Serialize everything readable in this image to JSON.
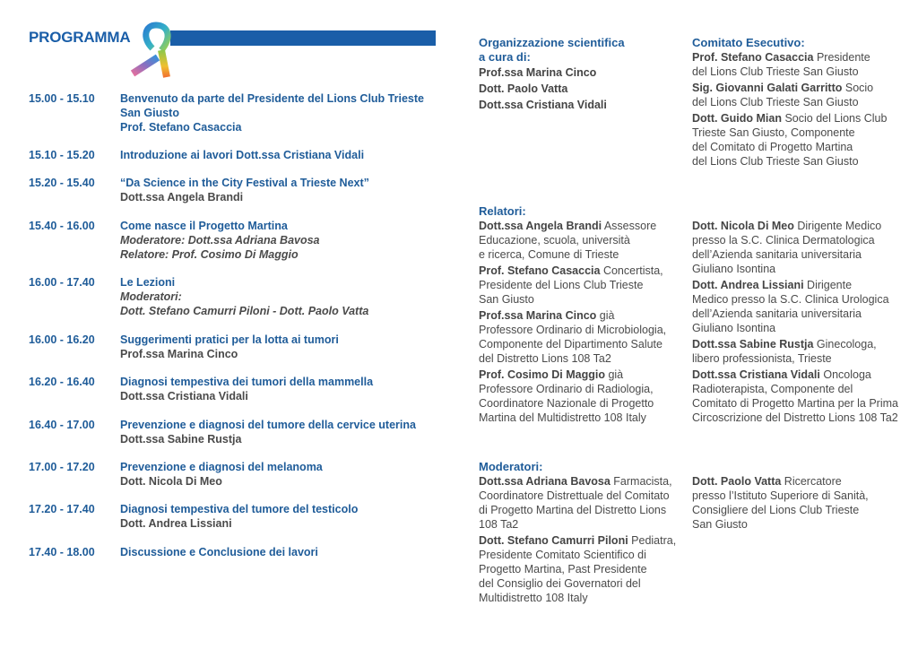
{
  "program": {
    "title": "PROGRAMMA",
    "items": [
      {
        "time": "15.00 - 15.10",
        "lines": [
          {
            "t": "Benvenuto da parte del Presidente del Lions Club Trieste",
            "s": "title"
          },
          {
            "t": "San Giusto",
            "s": "title"
          },
          {
            "t": "Prof. Stefano Casaccia",
            "s": "title"
          }
        ]
      },
      {
        "time": "15.10 - 15.20",
        "lines": [
          {
            "t": "Introduzione ai lavori Dott.ssa Cristiana Vidali",
            "s": "title"
          }
        ]
      },
      {
        "time": "15.20 - 15.40",
        "lines": [
          {
            "t": "“Da Science in the City Festival a Trieste Next”",
            "s": "title"
          },
          {
            "t": "Dott.ssa Angela Brandi",
            "s": "name"
          }
        ]
      },
      {
        "time": "15.40 - 16.00",
        "lines": [
          {
            "t": "Come nasce il Progetto Martina",
            "s": "title"
          },
          {
            "t": "Moderatore: Dott.ssa Adriana Bavosa",
            "s": "ital"
          },
          {
            "t": "Relatore: Prof. Cosimo Di Maggio",
            "s": "ital"
          }
        ]
      },
      {
        "time": "16.00 - 17.40",
        "lines": [
          {
            "t": "Le Lezioni",
            "s": "title"
          },
          {
            "t": "Moderatori:",
            "s": "ital"
          },
          {
            "t": "Dott. Stefano Camurri Piloni -  Dott. Paolo Vatta",
            "s": "ital"
          }
        ]
      },
      {
        "time": "16.00 - 16.20",
        "lines": [
          {
            "t": "Suggerimenti pratici per la lotta ai tumori",
            "s": "title"
          },
          {
            "t": "Prof.ssa Marina Cinco",
            "s": "name"
          }
        ]
      },
      {
        "time": "16.20 - 16.40",
        "lines": [
          {
            "t": "Diagnosi tempestiva dei tumori della mammella",
            "s": "title"
          },
          {
            "t": "Dott.ssa Cristiana Vidali",
            "s": "name"
          }
        ]
      },
      {
        "time": "16.40 - 17.00",
        "lines": [
          {
            "t": "Prevenzione e diagnosi del tumore della cervice uterina",
            "s": "title"
          },
          {
            "t": "Dott.ssa Sabine Rustja",
            "s": "name"
          }
        ]
      },
      {
        "time": "17.00 - 17.20",
        "lines": [
          {
            "t": "Prevenzione e diagnosi del melanoma",
            "s": "title"
          },
          {
            "t": "Dott. Nicola Di Meo",
            "s": "name"
          }
        ]
      },
      {
        "time": "17.20 - 17.40",
        "lines": [
          {
            "t": "Diagnosi tempestiva del tumore del testicolo",
            "s": "title"
          },
          {
            "t": "Dott. Andrea Lissiani",
            "s": "name"
          }
        ]
      },
      {
        "time": "17.40 - 18.00",
        "lines": [
          {
            "t": "Discussione e Conclusione dei  lavori",
            "s": "title"
          }
        ]
      }
    ]
  },
  "organization": {
    "heading": "Organizzazione scientifica\na cura di:",
    "names": [
      "Prof.ssa Marina Cinco",
      "Dott. Paolo Vatta",
      "Dott.ssa Cristiana Vidali"
    ]
  },
  "committee": {
    "heading": "Comitato Esecutivo:",
    "entries": [
      {
        "name": "Prof. Stefano Casaccia",
        "desc": " Presidente\ndel Lions Club Trieste San Giusto"
      },
      {
        "name": "Sig. Giovanni Galati Garritto",
        "desc": " Socio\ndel Lions Club Trieste San Giusto"
      },
      {
        "name": "Dott. Guido Mian",
        "desc": " Socio del Lions Club\nTrieste San Giusto, Componente\ndel Comitato di Progetto Martina\ndel Lions Club Trieste San Giusto"
      }
    ]
  },
  "speakers": {
    "heading": "Relatori:",
    "col1": [
      {
        "name": "Dott.ssa Angela Brandi",
        "desc": " Assessore\nEducazione, scuola, università\ne ricerca, Comune di Trieste"
      },
      {
        "name": "Prof. Stefano Casaccia",
        "desc": " Concertista,\nPresidente del Lions Club Trieste\nSan Giusto"
      },
      {
        "name": "Prof.ssa Marina Cinco",
        "desc": " già\nProfessore Ordinario di Microbiologia,\nComponente del Dipartimento Salute\ndel Distretto Lions 108 Ta2"
      },
      {
        "name": "Prof. Cosimo Di Maggio",
        "desc": " già\nProfessore Ordinario di Radiologia,\nCoordinatore Nazionale di Progetto\nMartina del Multidistretto 108 Italy"
      }
    ],
    "col2": [
      {
        "name": "Dott. Nicola Di Meo",
        "desc": " Dirigente Medico\npresso la S.C. Clinica Dermatologica\ndell’Azienda sanitaria universitaria\nGiuliano Isontina"
      },
      {
        "name": "Dott. Andrea Lissiani",
        "desc": " Dirigente\nMedico presso la S.C. Clinica Urologica\ndell’Azienda sanitaria universitaria\nGiuliano Isontina"
      },
      {
        "name": "Dott.ssa Sabine Rustja",
        "desc": " Ginecologa,\nlibero professionista, Trieste"
      },
      {
        "name": "Dott.ssa Cristiana Vidali",
        "desc": " Oncologa\nRadioterapista, Componente del\nComitato di Progetto Martina per la Prima\nCircoscrizione del Distretto Lions 108 Ta2"
      }
    ]
  },
  "moderators": {
    "heading": "Moderatori:",
    "col1": [
      {
        "name": "Dott.ssa Adriana Bavosa",
        "desc": " Farmacista,\nCoordinatore Distrettuale del Comitato\ndi Progetto Martina del Distretto Lions\n108 Ta2"
      },
      {
        "name": "Dott. Stefano Camurri Piloni",
        "desc": " Pediatra,\nPresidente Comitato Scientifico di\nProgetto Martina, Past Presidente\ndel Consiglio dei Governatori del\nMultidistretto 108 Italy"
      }
    ],
    "col2": [
      {
        "name": "Dott. Paolo Vatta",
        "desc": " Ricercatore\npresso l’Istituto Superiore di Sanità,\nConsigliere del Lions Club Trieste\nSan Giusto"
      }
    ]
  },
  "colors": {
    "brand_blue": "#1a5ea8",
    "text_gray": "#4a4a4a"
  },
  "icons": {
    "ribbon": "rainbow-awareness-ribbon"
  }
}
